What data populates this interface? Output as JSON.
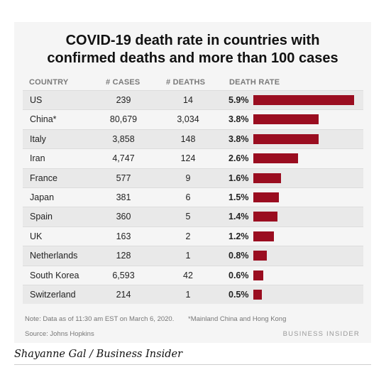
{
  "chart_data": {
    "type": "table",
    "title_line1": "COVID-19 death rate in countries with",
    "title_line2": "confirmed deaths and more than 100 cases",
    "columns": [
      "COUNTRY",
      "# CASES",
      "# DEATHS",
      "DEATH RATE"
    ],
    "rows": [
      {
        "country": "US",
        "cases": "239",
        "deaths": "14",
        "rate_label": "5.9%",
        "rate": 5.9
      },
      {
        "country": "China*",
        "cases": "80,679",
        "deaths": "3,034",
        "rate_label": "3.8%",
        "rate": 3.8
      },
      {
        "country": "Italy",
        "cases": "3,858",
        "deaths": "148",
        "rate_label": "3.8%",
        "rate": 3.8
      },
      {
        "country": "Iran",
        "cases": "4,747",
        "deaths": "124",
        "rate_label": "2.6%",
        "rate": 2.6
      },
      {
        "country": "France",
        "cases": "577",
        "deaths": "9",
        "rate_label": "1.6%",
        "rate": 1.6
      },
      {
        "country": "Japan",
        "cases": "381",
        "deaths": "6",
        "rate_label": "1.5%",
        "rate": 1.5
      },
      {
        "country": "Spain",
        "cases": "360",
        "deaths": "5",
        "rate_label": "1.4%",
        "rate": 1.4
      },
      {
        "country": "UK",
        "cases": "163",
        "deaths": "2",
        "rate_label": "1.2%",
        "rate": 1.2
      },
      {
        "country": "Netherlands",
        "cases": "128",
        "deaths": "1",
        "rate_label": "0.8%",
        "rate": 0.8
      },
      {
        "country": "South Korea",
        "cases": "6,593",
        "deaths": "42",
        "rate_label": "0.6%",
        "rate": 0.6
      },
      {
        "country": "Switzerland",
        "cases": "214",
        "deaths": "1",
        "rate_label": "0.5%",
        "rate": 0.5
      }
    ],
    "bar_color": "#9a0d20",
    "note": "Note: Data as of 11:30 am EST on March 6, 2020.",
    "footnote": "*Mainland China and Hong Kong",
    "source": "Source: Johns Hopkins",
    "brand": "BUSINESS INSIDER"
  },
  "credit": "Shayanne Gal / Business Insider"
}
